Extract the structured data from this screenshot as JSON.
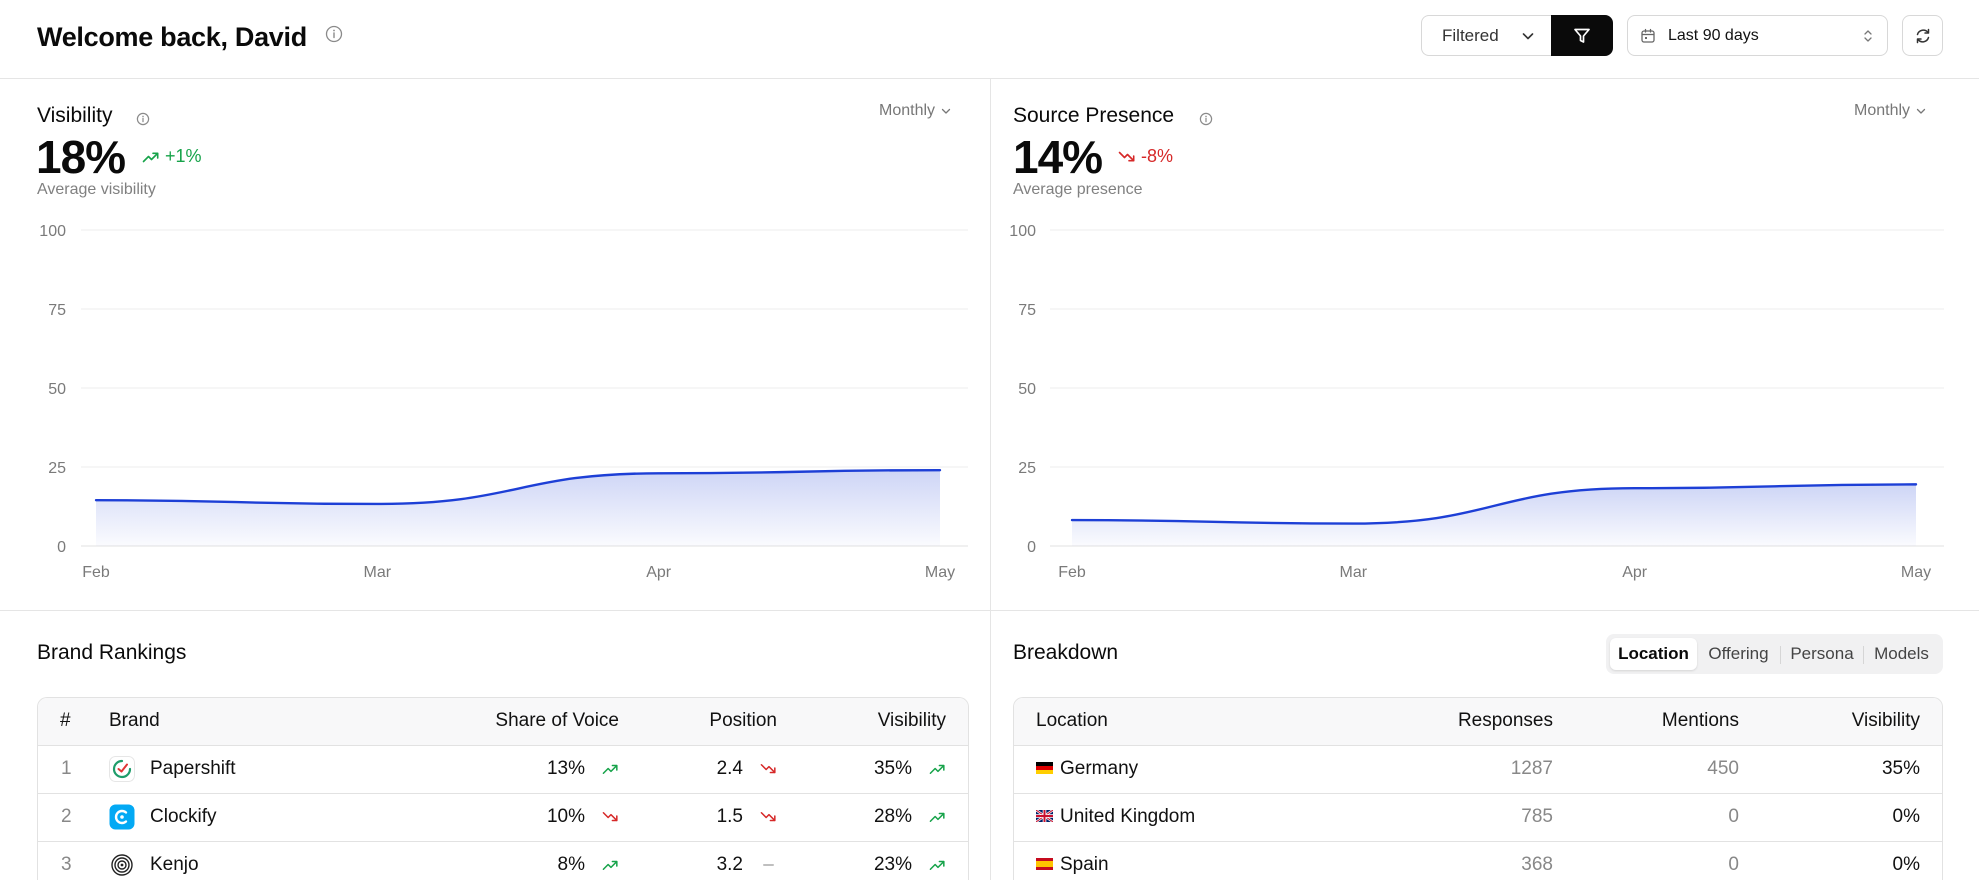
{
  "header": {
    "title": "Welcome back, David",
    "filter_label": "Filtered",
    "date_range": "Last 90 days"
  },
  "visibility": {
    "title": "Visibility",
    "period": "Monthly",
    "value": "18%",
    "delta": "+1%",
    "delta_direction": "up",
    "sub_label": "Average visibility"
  },
  "presence": {
    "title": "Source Presence",
    "period": "Monthly",
    "value": "14%",
    "delta": "-8%",
    "delta_direction": "down",
    "sub_label": "Average presence"
  },
  "chart_data": [
    {
      "type": "area",
      "title": "Visibility",
      "categories": [
        "Feb",
        "Mar",
        "Apr",
        "May"
      ],
      "values": [
        14.5,
        13.3,
        23,
        24
      ],
      "ylim": [
        0,
        100
      ],
      "yticks": [
        "100",
        "75",
        "50",
        "25",
        "0"
      ],
      "grid": true,
      "color": "#1d3fd6"
    },
    {
      "type": "area",
      "title": "Source Presence",
      "categories": [
        "Feb",
        "Mar",
        "Apr",
        "May"
      ],
      "values": [
        8.2,
        7.1,
        18.3,
        19.5
      ],
      "ylim": [
        0,
        100
      ],
      "yticks": [
        "100",
        "75",
        "50",
        "25",
        "0"
      ],
      "grid": true,
      "color": "#1d3fd6"
    }
  ],
  "brand_rankings": {
    "title": "Brand Rankings",
    "columns": [
      "#",
      "Brand",
      "Share of Voice",
      "Position",
      "Visibility"
    ],
    "rows": [
      {
        "rank": "1",
        "brand": "Papershift",
        "logo": "papershift-logo",
        "share": "13%",
        "share_trend": "up",
        "position": "2.4",
        "position_trend": "down",
        "visibility": "35%",
        "visibility_trend": "up"
      },
      {
        "rank": "2",
        "brand": "Clockify",
        "logo": "clockify-logo",
        "share": "10%",
        "share_trend": "down",
        "position": "1.5",
        "position_trend": "down",
        "visibility": "28%",
        "visibility_trend": "up"
      },
      {
        "rank": "3",
        "brand": "Kenjo",
        "logo": "kenjo-logo",
        "share": "8%",
        "share_trend": "up",
        "position": "3.2",
        "position_trend": "flat",
        "visibility": "23%",
        "visibility_trend": "up"
      }
    ]
  },
  "breakdown": {
    "title": "Breakdown",
    "tabs": [
      "Location",
      "Offering",
      "Persona",
      "Models"
    ],
    "active_tab": "Location",
    "columns": [
      "Location",
      "Responses",
      "Mentions",
      "Visibility"
    ],
    "rows": [
      {
        "flag": "germany-flag",
        "location": "Germany",
        "responses": "1287",
        "mentions": "450",
        "visibility": "35%"
      },
      {
        "flag": "uk-flag",
        "location": "United Kingdom",
        "responses": "785",
        "mentions": "0",
        "visibility": "0%"
      },
      {
        "flag": "spain-flag",
        "location": "Spain",
        "responses": "368",
        "mentions": "0",
        "visibility": "0%"
      }
    ]
  },
  "colors": {
    "up": "#17a34a",
    "down": "#d62828",
    "line": "#1d3fd6"
  }
}
